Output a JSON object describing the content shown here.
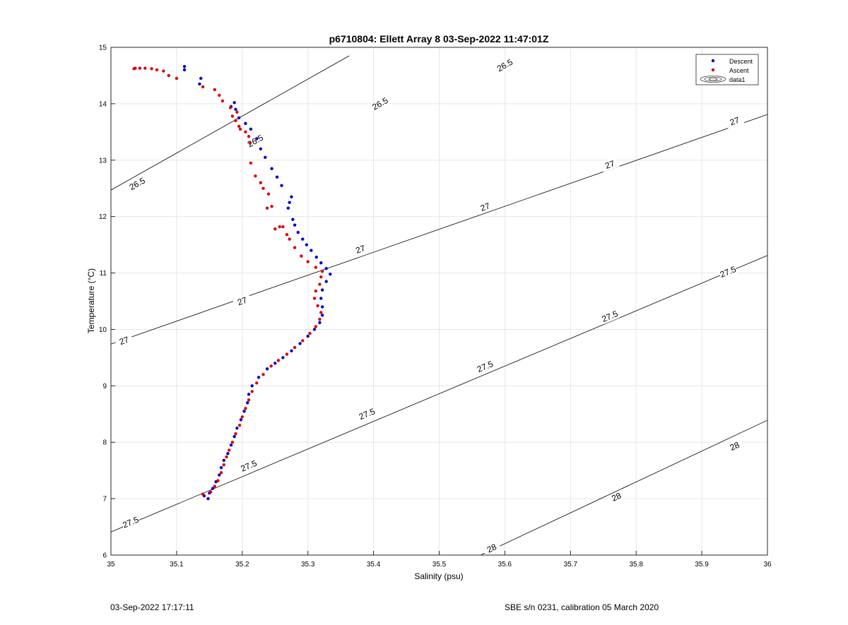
{
  "chart_data": {
    "type": "scatter",
    "title": "p6710804: Ellett Array 8 03-Sep-2022 11:47:01Z",
    "xlabel": "Salinity (psu)",
    "ylabel": "Temperature (°C)",
    "xlim": [
      35,
      36
    ],
    "ylim": [
      6,
      15
    ],
    "xticks": [
      "35",
      "35.1",
      "35.2",
      "35.3",
      "35.4",
      "35.5",
      "35.6",
      "35.7",
      "35.8",
      "35.9",
      "36"
    ],
    "yticks": [
      "6",
      "7",
      "8",
      "9",
      "10",
      "11",
      "12",
      "13",
      "14",
      "15"
    ],
    "grid": true,
    "legend_position": "top-right",
    "legend": [
      "Descent",
      "Ascent",
      "data1"
    ],
    "contours": [
      {
        "level": "26.5",
        "line": [
          [
            35.0,
            12.47
          ],
          [
            35.363,
            14.85
          ]
        ],
        "labels": [
          [
            35.04,
            12.58
          ],
          [
            35.22,
            13.34
          ],
          [
            35.41,
            14.0
          ],
          [
            35.6,
            14.68
          ]
        ]
      },
      {
        "level": "27",
        "line": [
          [
            35.0,
            9.74
          ],
          [
            36.0,
            13.81
          ]
        ],
        "labels": [
          [
            35.02,
            9.8
          ],
          [
            35.2,
            10.5
          ],
          [
            35.38,
            11.42
          ],
          [
            35.57,
            12.17
          ],
          [
            35.76,
            12.92
          ],
          [
            35.95,
            13.69
          ]
        ]
      },
      {
        "level": "27.5",
        "line": [
          [
            35.0,
            6.41
          ],
          [
            36.0,
            11.31
          ]
        ],
        "labels": [
          [
            35.03,
            6.58
          ],
          [
            35.21,
            7.58
          ],
          [
            35.39,
            8.5
          ],
          [
            35.57,
            9.34
          ],
          [
            35.76,
            10.23
          ],
          [
            35.94,
            11.02
          ]
        ]
      },
      {
        "level": "28",
        "line": [
          [
            35.563,
            6.0
          ],
          [
            36.0,
            8.39
          ]
        ],
        "labels": [
          [
            35.58,
            6.12
          ],
          [
            35.77,
            7.03
          ],
          [
            35.95,
            7.93
          ]
        ]
      }
    ],
    "series": [
      {
        "name": "Descent",
        "color": "#0000cc",
        "points": [
          [
            35.148,
            7.0
          ],
          [
            35.142,
            7.05
          ],
          [
            35.15,
            7.1
          ],
          [
            35.155,
            7.18
          ],
          [
            35.16,
            7.3
          ],
          [
            35.165,
            7.42
          ],
          [
            35.168,
            7.55
          ],
          [
            35.172,
            7.68
          ],
          [
            35.178,
            7.8
          ],
          [
            35.183,
            7.95
          ],
          [
            35.188,
            8.1
          ],
          [
            35.192,
            8.25
          ],
          [
            35.198,
            8.4
          ],
          [
            35.203,
            8.55
          ],
          [
            35.208,
            8.7
          ],
          [
            35.21,
            8.85
          ],
          [
            35.215,
            9.0
          ],
          [
            35.225,
            9.15
          ],
          [
            35.238,
            9.3
          ],
          [
            35.25,
            9.4
          ],
          [
            35.262,
            9.5
          ],
          [
            35.275,
            9.62
          ],
          [
            35.288,
            9.75
          ],
          [
            35.3,
            9.88
          ],
          [
            35.31,
            10.0
          ],
          [
            35.318,
            10.12
          ],
          [
            35.322,
            10.25
          ],
          [
            35.322,
            10.4
          ],
          [
            35.32,
            10.55
          ],
          [
            35.322,
            10.7
          ],
          [
            35.328,
            10.85
          ],
          [
            35.334,
            10.98
          ],
          [
            35.328,
            11.08
          ],
          [
            35.32,
            11.18
          ],
          [
            35.313,
            11.28
          ],
          [
            35.305,
            11.4
          ],
          [
            35.298,
            11.5
          ],
          [
            35.292,
            11.6
          ],
          [
            35.285,
            11.72
          ],
          [
            35.28,
            11.85
          ],
          [
            35.277,
            11.95
          ],
          [
            35.27,
            12.15
          ],
          [
            35.272,
            12.25
          ],
          [
            35.275,
            12.35
          ],
          [
            35.26,
            12.55
          ],
          [
            35.253,
            12.7
          ],
          [
            35.245,
            12.85
          ],
          [
            35.235,
            13.05
          ],
          [
            35.228,
            13.2
          ],
          [
            35.222,
            13.38
          ],
          [
            35.213,
            13.55
          ],
          [
            35.205,
            13.65
          ],
          [
            35.195,
            13.75
          ],
          [
            35.19,
            13.9
          ],
          [
            35.188,
            14.02
          ],
          [
            35.183,
            13.95
          ],
          [
            35.137,
            14.45
          ],
          [
            35.135,
            14.35
          ],
          [
            35.112,
            14.66
          ],
          [
            35.112,
            14.6
          ]
        ]
      },
      {
        "name": "Ascent",
        "color": "#dd0000",
        "points": [
          [
            35.14,
            7.08
          ],
          [
            35.152,
            7.12
          ],
          [
            35.158,
            7.22
          ],
          [
            35.163,
            7.32
          ],
          [
            35.168,
            7.46
          ],
          [
            35.172,
            7.6
          ],
          [
            35.176,
            7.74
          ],
          [
            35.18,
            7.86
          ],
          [
            35.185,
            8.0
          ],
          [
            35.19,
            8.15
          ],
          [
            35.196,
            8.3
          ],
          [
            35.2,
            8.45
          ],
          [
            35.205,
            8.6
          ],
          [
            35.21,
            8.75
          ],
          [
            35.215,
            8.9
          ],
          [
            35.222,
            9.05
          ],
          [
            35.232,
            9.2
          ],
          [
            35.244,
            9.35
          ],
          [
            35.255,
            9.45
          ],
          [
            35.268,
            9.56
          ],
          [
            35.28,
            9.68
          ],
          [
            35.292,
            9.8
          ],
          [
            35.303,
            9.93
          ],
          [
            35.312,
            10.05
          ],
          [
            35.318,
            10.18
          ],
          [
            35.32,
            10.3
          ],
          [
            35.315,
            10.42
          ],
          [
            35.31,
            10.55
          ],
          [
            35.312,
            10.68
          ],
          [
            35.318,
            10.8
          ],
          [
            35.32,
            10.93
          ],
          [
            35.322,
            11.03
          ],
          [
            35.312,
            11.1
          ],
          [
            35.3,
            11.2
          ],
          [
            35.29,
            11.3
          ],
          [
            35.28,
            11.45
          ],
          [
            35.272,
            11.6
          ],
          [
            35.268,
            11.68
          ],
          [
            35.262,
            11.82
          ],
          [
            35.257,
            11.82
          ],
          [
            35.25,
            11.78
          ],
          [
            35.245,
            12.18
          ],
          [
            35.238,
            12.15
          ],
          [
            35.24,
            12.4
          ],
          [
            35.232,
            12.5
          ],
          [
            35.228,
            12.6
          ],
          [
            35.22,
            12.72
          ],
          [
            35.213,
            12.95
          ],
          [
            35.212,
            13.3
          ],
          [
            35.21,
            13.42
          ],
          [
            35.205,
            13.5
          ],
          [
            35.197,
            13.55
          ],
          [
            35.195,
            13.6
          ],
          [
            35.19,
            13.7
          ],
          [
            35.185,
            13.78
          ],
          [
            35.192,
            13.85
          ],
          [
            35.182,
            13.93
          ],
          [
            35.17,
            14.05
          ],
          [
            35.165,
            14.15
          ],
          [
            35.158,
            14.25
          ],
          [
            35.14,
            14.3
          ],
          [
            35.1,
            14.45
          ],
          [
            35.088,
            14.5
          ],
          [
            35.08,
            14.58
          ],
          [
            35.07,
            14.6
          ],
          [
            35.062,
            14.62
          ],
          [
            35.052,
            14.63
          ],
          [
            35.044,
            14.63
          ],
          [
            35.037,
            14.63
          ],
          [
            35.035,
            14.62
          ]
        ]
      }
    ]
  },
  "footer": {
    "left": "03-Sep-2022 17:17:11",
    "right": "SBE s/n 0231, calibration 05 March 2020"
  }
}
